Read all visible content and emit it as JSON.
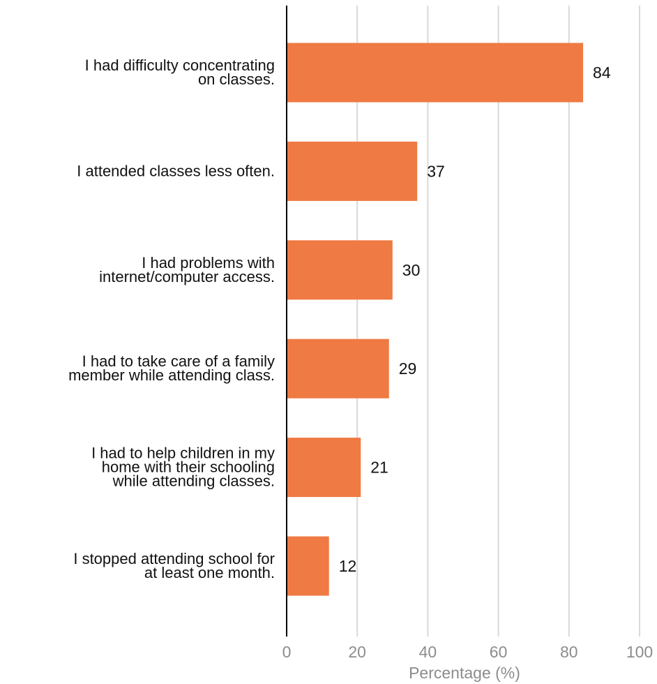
{
  "chart_data": {
    "type": "bar",
    "orientation": "horizontal",
    "categories": [
      [
        "I had difficulty concentrating",
        "on classes."
      ],
      [
        "I attended classes less often."
      ],
      [
        "I had problems with",
        "internet/computer access."
      ],
      [
        "I had to take care of a family",
        "member while attending class."
      ],
      [
        "I had to help children in my",
        "home with their schooling",
        "while attending classes."
      ],
      [
        "I stopped attending school for",
        "at least one month."
      ]
    ],
    "values": [
      84,
      37,
      30,
      29,
      21,
      12
    ],
    "xlabel": "Percentage (%)",
    "ylabel": "",
    "xlim": [
      0,
      100
    ],
    "xticks": [
      0,
      20,
      40,
      60,
      80,
      100
    ],
    "grid": true,
    "colors": {
      "bar": "#ef7a43",
      "grid": "#d9d9d9",
      "axis": "#000000",
      "tick_text": "#8c8c8c",
      "label_text": "#111111"
    }
  }
}
